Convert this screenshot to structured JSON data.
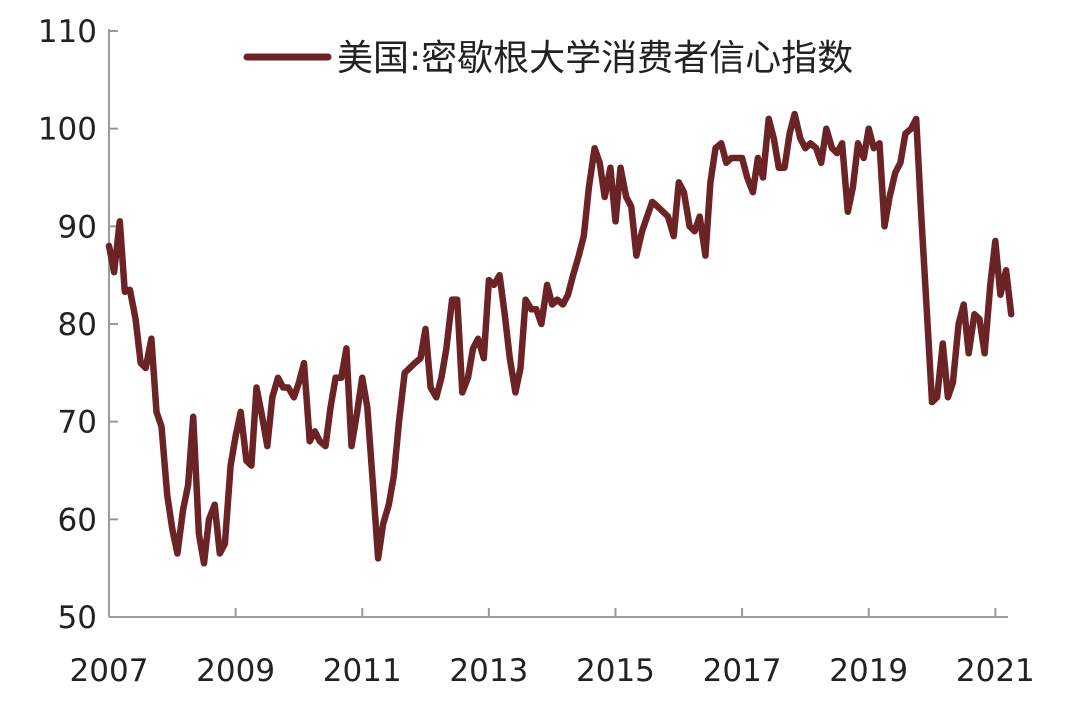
{
  "chart_data": {
    "type": "line",
    "title": "",
    "xlabel": "",
    "ylabel": "",
    "ylim": [
      50,
      110
    ],
    "xlim": [
      2007.0,
      2021.2
    ],
    "y_ticks": [
      "50",
      "60",
      "70",
      "80",
      "90",
      "100",
      "110"
    ],
    "x_ticks": [
      "2007",
      "2009",
      "2011",
      "2013",
      "2015",
      "2017",
      "2019",
      "2021"
    ],
    "grid": false,
    "legend_position": "top",
    "series": [
      {
        "name": "美国:密歇根大学消费者信心指数",
        "color": "#6b2326",
        "points": [
          [
            2007.0,
            88.0
          ],
          [
            2007.08,
            85.3
          ],
          [
            2007.17,
            90.5
          ],
          [
            2007.25,
            83.3
          ],
          [
            2007.33,
            83.5
          ],
          [
            2007.42,
            80.5
          ],
          [
            2007.5,
            76.0
          ],
          [
            2007.58,
            75.5
          ],
          [
            2007.67,
            78.5
          ],
          [
            2007.75,
            71.0
          ],
          [
            2007.83,
            69.5
          ],
          [
            2007.92,
            62.5
          ],
          [
            2008.0,
            59.0
          ],
          [
            2008.08,
            56.5
          ],
          [
            2008.17,
            61.0
          ],
          [
            2008.25,
            63.5
          ],
          [
            2008.33,
            70.5
          ],
          [
            2008.42,
            58.5
          ],
          [
            2008.5,
            55.5
          ],
          [
            2008.58,
            60.0
          ],
          [
            2008.67,
            61.5
          ],
          [
            2008.75,
            56.5
          ],
          [
            2008.83,
            57.5
          ],
          [
            2008.92,
            65.5
          ],
          [
            2009.0,
            68.5
          ],
          [
            2009.08,
            71.0
          ],
          [
            2009.17,
            66.0
          ],
          [
            2009.25,
            65.5
          ],
          [
            2009.33,
            73.5
          ],
          [
            2009.42,
            70.5
          ],
          [
            2009.5,
            67.5
          ],
          [
            2009.58,
            72.5
          ],
          [
            2009.67,
            74.5
          ],
          [
            2009.75,
            73.5
          ],
          [
            2009.83,
            73.5
          ],
          [
            2009.92,
            72.5
          ],
          [
            2010.0,
            74.0
          ],
          [
            2010.08,
            76.0
          ],
          [
            2010.17,
            68.0
          ],
          [
            2010.25,
            69.0
          ],
          [
            2010.33,
            68.0
          ],
          [
            2010.42,
            67.5
          ],
          [
            2010.5,
            71.5
          ],
          [
            2010.58,
            74.5
          ],
          [
            2010.67,
            74.5
          ],
          [
            2010.75,
            77.5
          ],
          [
            2010.83,
            67.5
          ],
          [
            2010.92,
            71.0
          ],
          [
            2011.0,
            74.5
          ],
          [
            2011.08,
            71.5
          ],
          [
            2011.17,
            63.5
          ],
          [
            2011.25,
            56.0
          ],
          [
            2011.33,
            59.5
          ],
          [
            2011.42,
            61.5
          ],
          [
            2011.5,
            64.5
          ],
          [
            2011.58,
            70.0
          ],
          [
            2011.67,
            75.0
          ],
          [
            2011.75,
            75.5
          ],
          [
            2011.83,
            76.0
          ],
          [
            2011.92,
            76.5
          ],
          [
            2012.0,
            79.5
          ],
          [
            2012.08,
            73.5
          ],
          [
            2012.17,
            72.5
          ],
          [
            2012.25,
            74.5
          ],
          [
            2012.33,
            77.5
          ],
          [
            2012.42,
            82.5
          ],
          [
            2012.5,
            82.5
          ],
          [
            2012.58,
            73.0
          ],
          [
            2012.67,
            74.5
          ],
          [
            2012.75,
            77.5
          ],
          [
            2012.83,
            78.5
          ],
          [
            2012.92,
            76.5
          ],
          [
            2013.0,
            84.5
          ],
          [
            2013.08,
            84.0
          ],
          [
            2013.17,
            85.0
          ],
          [
            2013.25,
            81.0
          ],
          [
            2013.33,
            76.5
          ],
          [
            2013.42,
            73.0
          ],
          [
            2013.5,
            75.5
          ],
          [
            2013.58,
            82.5
          ],
          [
            2013.67,
            81.5
          ],
          [
            2013.75,
            81.5
          ],
          [
            2013.83,
            80.0
          ],
          [
            2013.92,
            84.0
          ],
          [
            2014.0,
            82.0
          ],
          [
            2014.08,
            82.5
          ],
          [
            2014.17,
            82.0
          ],
          [
            2014.25,
            83.0
          ],
          [
            2014.33,
            85.0
          ],
          [
            2014.42,
            87.0
          ],
          [
            2014.5,
            89.0
          ],
          [
            2014.58,
            94.0
          ],
          [
            2014.67,
            98.0
          ],
          [
            2014.75,
            96.5
          ],
          [
            2014.83,
            93.0
          ],
          [
            2014.92,
            96.0
          ],
          [
            2015.0,
            90.5
          ],
          [
            2015.08,
            96.0
          ],
          [
            2015.17,
            93.0
          ],
          [
            2015.25,
            92.0
          ],
          [
            2015.33,
            87.0
          ],
          [
            2015.42,
            89.5
          ],
          [
            2015.5,
            91.0
          ],
          [
            2015.58,
            92.5
          ],
          [
            2015.67,
            92.0
          ],
          [
            2015.75,
            91.5
          ],
          [
            2015.83,
            91.0
          ],
          [
            2015.92,
            89.0
          ],
          [
            2016.0,
            94.5
          ],
          [
            2016.08,
            93.5
          ],
          [
            2016.17,
            90.0
          ],
          [
            2016.25,
            89.5
          ],
          [
            2016.33,
            91.0
          ],
          [
            2016.42,
            87.0
          ],
          [
            2016.5,
            94.5
          ],
          [
            2016.58,
            98.0
          ],
          [
            2016.67,
            98.5
          ],
          [
            2016.75,
            96.5
          ],
          [
            2016.83,
            97.0
          ],
          [
            2016.92,
            97.0
          ],
          [
            2017.0,
            97.0
          ],
          [
            2017.08,
            95.0
          ],
          [
            2017.17,
            93.5
          ],
          [
            2017.25,
            97.0
          ],
          [
            2017.33,
            95.0
          ],
          [
            2017.42,
            101.0
          ],
          [
            2017.5,
            99.0
          ],
          [
            2017.58,
            96.0
          ],
          [
            2017.67,
            96.0
          ],
          [
            2017.75,
            99.5
          ],
          [
            2017.83,
            101.5
          ],
          [
            2017.92,
            99.0
          ],
          [
            2018.0,
            98.0
          ],
          [
            2018.08,
            98.5
          ],
          [
            2018.17,
            98.0
          ],
          [
            2018.25,
            96.5
          ],
          [
            2018.33,
            100.0
          ],
          [
            2018.42,
            98.0
          ],
          [
            2018.5,
            97.5
          ],
          [
            2018.58,
            98.5
          ],
          [
            2018.67,
            91.5
          ],
          [
            2018.75,
            94.0
          ],
          [
            2018.83,
            98.5
          ],
          [
            2018.92,
            97.0
          ],
          [
            2019.0,
            100.0
          ],
          [
            2019.08,
            98.0
          ],
          [
            2019.17,
            98.5
          ],
          [
            2019.25,
            90.0
          ],
          [
            2019.33,
            93.0
          ],
          [
            2019.42,
            95.5
          ],
          [
            2019.5,
            96.5
          ],
          [
            2019.58,
            99.5
          ],
          [
            2019.67,
            100.0
          ],
          [
            2019.75,
            101.0
          ],
          [
            2019.83,
            91.0
          ],
          [
            2019.92,
            81.0
          ],
          [
            2020.0,
            72.0
          ],
          [
            2020.08,
            72.5
          ],
          [
            2020.17,
            78.0
          ],
          [
            2020.25,
            72.5
          ],
          [
            2020.33,
            74.0
          ],
          [
            2020.42,
            80.0
          ],
          [
            2020.5,
            82.0
          ],
          [
            2020.58,
            77.0
          ],
          [
            2020.67,
            81.0
          ],
          [
            2020.75,
            80.5
          ],
          [
            2020.83,
            77.0
          ],
          [
            2020.92,
            84.0
          ],
          [
            2021.0,
            88.5
          ],
          [
            2021.08,
            83.0
          ],
          [
            2021.17,
            85.5
          ],
          [
            2021.25,
            81.0
          ]
        ]
      }
    ]
  }
}
